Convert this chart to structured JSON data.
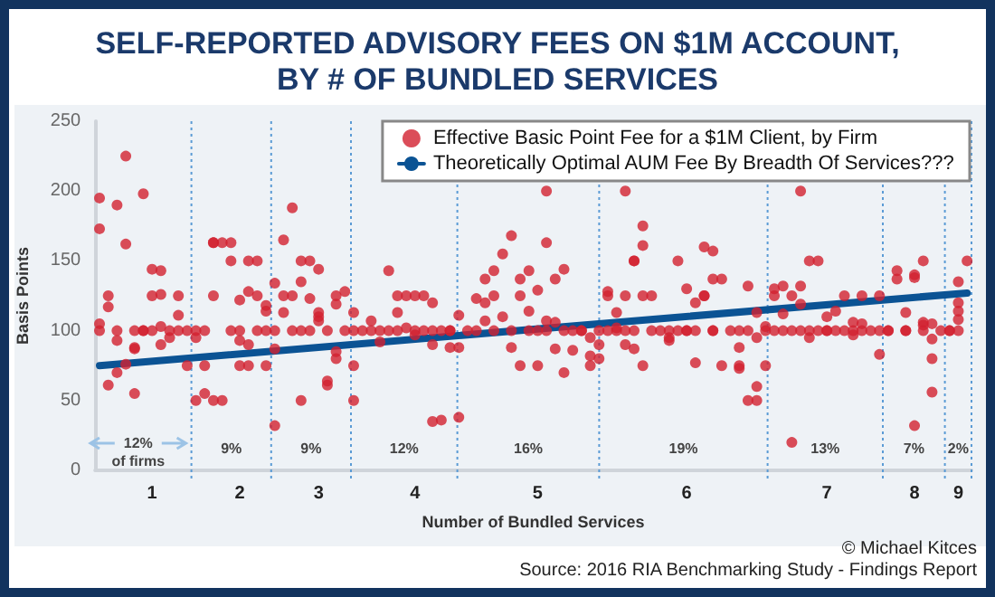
{
  "chart_data": {
    "type": "scatter",
    "title": "SELF-REPORTED ADVISORY FEES ON $1M ACCOUNT,\nBY # OF BUNDLED SERVICES",
    "xlabel": "Number of Bundled Services",
    "ylabel": "Basis Points",
    "categories": [
      null,
      null,
      null,
      null,
      null,
      null,
      "1",
      null,
      null,
      null,
      null,
      null,
      null,
      null,
      null,
      null,
      "2",
      null,
      null,
      null,
      null,
      null,
      null,
      null,
      null,
      "3",
      null,
      null,
      null,
      null,
      null,
      null,
      null,
      null,
      null,
      null,
      "4",
      null,
      null,
      null,
      null,
      null,
      null,
      null,
      null,
      null,
      null,
      null,
      null,
      null,
      "5",
      null,
      null,
      null,
      null,
      null,
      null,
      null,
      null,
      null,
      null,
      null,
      null,
      null,
      null,
      null,
      null,
      "6",
      null,
      null,
      null,
      null,
      null,
      null,
      null,
      null,
      null,
      null,
      null,
      null,
      null,
      null,
      null,
      "7",
      null,
      null,
      null,
      null,
      null,
      null,
      null,
      null,
      null,
      "8",
      null,
      null,
      null,
      null,
      "9",
      null
    ],
    "ylim": [
      0,
      250
    ],
    "yticks": [
      0,
      50,
      100,
      150,
      200,
      250
    ],
    "grid": false,
    "legend": "top right",
    "marker": "circle",
    "annotations": [
      "12%\nof firms",
      "9%",
      "9%",
      "12%",
      "16%",
      "19%",
      "13%",
      "7%",
      "2%",
      "© Michael Kitces",
      "Source: 2016 RIA Benchmarking Study - Findings Report"
    ],
    "series": [
      {
        "name": "Effective Basic Point Fee for a $1M Client, by Firm",
        "color": "#d2202f",
        "values": [
          195,
          125,
          190,
          162,
          88,
          198,
          125,
          143,
          100,
          125,
          75,
          50,
          75,
          163,
          163,
          163,
          122,
          128,
          150,
          118,
          134,
          165,
          188,
          135,
          150,
          144,
          61,
          125,
          128,
          113,
          100,
          107,
          92,
          143,
          113,
          125,
          125,
          125,
          120,
          36,
          88,
          38,
          100,
          123,
          137,
          125,
          155,
          168,
          137,
          143,
          129,
          200,
          137,
          144,
          86,
          100,
          75,
          90,
          125,
          113,
          200,
          150,
          175,
          125,
          100,
          95,
          150,
          130,
          120,
          125,
          157,
          137,
          100,
          73,
          132,
          95,
          103,
          130,
          132,
          125,
          200,
          150,
          150,
          110,
          114,
          125,
          106,
          125,
          100,
          125,
          100,
          137,
          113,
          140,
          150,
          94,
          100,
          100,
          135,
          150
        ]
      },
      {
        "color": "#d2202f",
        "values": [
          173,
          117,
          70,
          225,
          87,
          100,
          144,
          126,
          95,
          111,
          100,
          95,
          55,
          163,
          50,
          150,
          75,
          150,
          125,
          114,
          32,
          125,
          125,
          150,
          123,
          113,
          64,
          119,
          100,
          75,
          null,
          100,
          100,
          100,
          125,
          102,
          97,
          100,
          90,
          100,
          100,
          88,
          null,
          100,
          120,
          143,
          110,
          88,
          125,
          114,
          75,
          163,
          87,
          70,
          100,
          100,
          82,
          80,
          128,
          102,
          125,
          150,
          161,
          100,
          null,
          93,
          100,
          100,
          77,
          125,
          137,
          75,
          null,
          75,
          50,
          60,
          75,
          125,
          112,
          20,
          119,
          95,
          100,
          100,
          100,
          100,
          97,
          105,
          null,
          83,
          100,
          143,
          100,
          138,
          106,
          105,
          null,
          100,
          120,
          null
        ]
      },
      {
        "color": "#d2202f",
        "values": [
          105,
          61,
          100,
          76,
          100,
          100,
          100,
          103,
          null,
          100,
          null,
          100,
          100,
          125,
          null,
          100,
          93,
          75,
          100,
          75,
          100,
          113,
          100,
          50,
          100,
          110,
          100,
          80,
          null,
          50,
          null,
          null,
          null,
          null,
          100,
          null,
          100,
          null,
          35,
          null,
          100,
          111,
          null,
          null,
          107,
          100,
          null,
          100,
          75,
          100,
          100,
          107,
          106,
          100,
          null,
          null,
          95,
          100,
          100,
          100,
          90,
          87,
          125,
          null,
          null,
          100,
          null,
          100,
          100,
          160,
          100,
          null,
          null,
          88,
          100,
          50,
          100,
          100,
          100,
          100,
          132,
          100,
          null,
          100,
          null,
          null,
          100,
          100,
          null,
          100,
          null,
          null,
          100,
          32,
          104,
          80,
          null,
          null,
          114,
          null
        ]
      },
      {
        "color": "#d2202f",
        "values": [
          100,
          null,
          93,
          null,
          55,
          null,
          null,
          90,
          null,
          null,
          null,
          null,
          null,
          50,
          null,
          null,
          100,
          90,
          null,
          100,
          87,
          null,
          null,
          100,
          null,
          107,
          null,
          85,
          null,
          100,
          null,
          null,
          null,
          null,
          null,
          null,
          null,
          null,
          100,
          null,
          null,
          null,
          null,
          null,
          null,
          null,
          null,
          null,
          null,
          null,
          null,
          100,
          null,
          null,
          null,
          null,
          null,
          null,
          null,
          null,
          100,
          100,
          75,
          null,
          null,
          null,
          null,
          null,
          null,
          null,
          100,
          null,
          null,
          100,
          null,
          113,
          null,
          null,
          null,
          null,
          100,
          null,
          null,
          null,
          null,
          null,
          null,
          null,
          null,
          null,
          null,
          null,
          null,
          null,
          100,
          56,
          null,
          null,
          108,
          null
        ]
      },
      {
        "color": "#d2202f",
        "values": [
          null,
          null,
          null,
          null,
          null,
          null,
          null,
          null,
          null,
          null,
          null,
          null,
          null,
          null,
          null,
          null,
          null,
          null,
          null,
          null,
          null,
          null,
          null,
          null,
          null,
          null,
          null,
          null,
          null,
          null,
          null,
          null,
          null,
          null,
          null,
          null,
          null,
          null,
          null,
          null,
          null,
          null,
          null,
          null,
          null,
          null,
          null,
          null,
          null,
          null,
          null,
          null,
          null,
          null,
          null,
          null,
          null,
          null,
          null,
          null,
          null,
          null,
          null,
          null,
          null,
          null,
          null,
          null,
          null,
          null,
          null,
          null,
          null,
          null,
          null,
          null,
          null,
          null,
          null,
          null,
          null,
          null,
          null,
          null,
          null,
          null,
          null,
          null,
          null,
          null,
          null,
          null,
          null,
          null,
          null,
          null,
          null,
          null,
          100,
          null
        ]
      },
      {
        "name": "Theoretically Optimal AUM Fee By Breadth Of Services???",
        "type": "line",
        "color": "#0b5394",
        "marker": "none",
        "values": [
          75,
          null,
          null,
          null,
          null,
          null,
          null,
          null,
          null,
          null,
          null,
          null,
          null,
          null,
          null,
          null,
          null,
          null,
          null,
          null,
          null,
          null,
          null,
          null,
          null,
          null,
          null,
          null,
          null,
          null,
          null,
          null,
          null,
          null,
          null,
          null,
          null,
          null,
          null,
          null,
          null,
          null,
          null,
          null,
          null,
          null,
          null,
          null,
          null,
          null,
          null,
          null,
          null,
          null,
          null,
          null,
          null,
          null,
          null,
          null,
          null,
          null,
          null,
          null,
          null,
          null,
          null,
          null,
          null,
          null,
          null,
          null,
          null,
          null,
          null,
          null,
          null,
          null,
          null,
          null,
          null,
          null,
          null,
          null,
          null,
          null,
          null,
          null,
          null,
          null,
          null,
          null,
          null,
          null,
          null,
          null,
          null,
          null,
          null,
          127
        ]
      }
    ]
  }
}
